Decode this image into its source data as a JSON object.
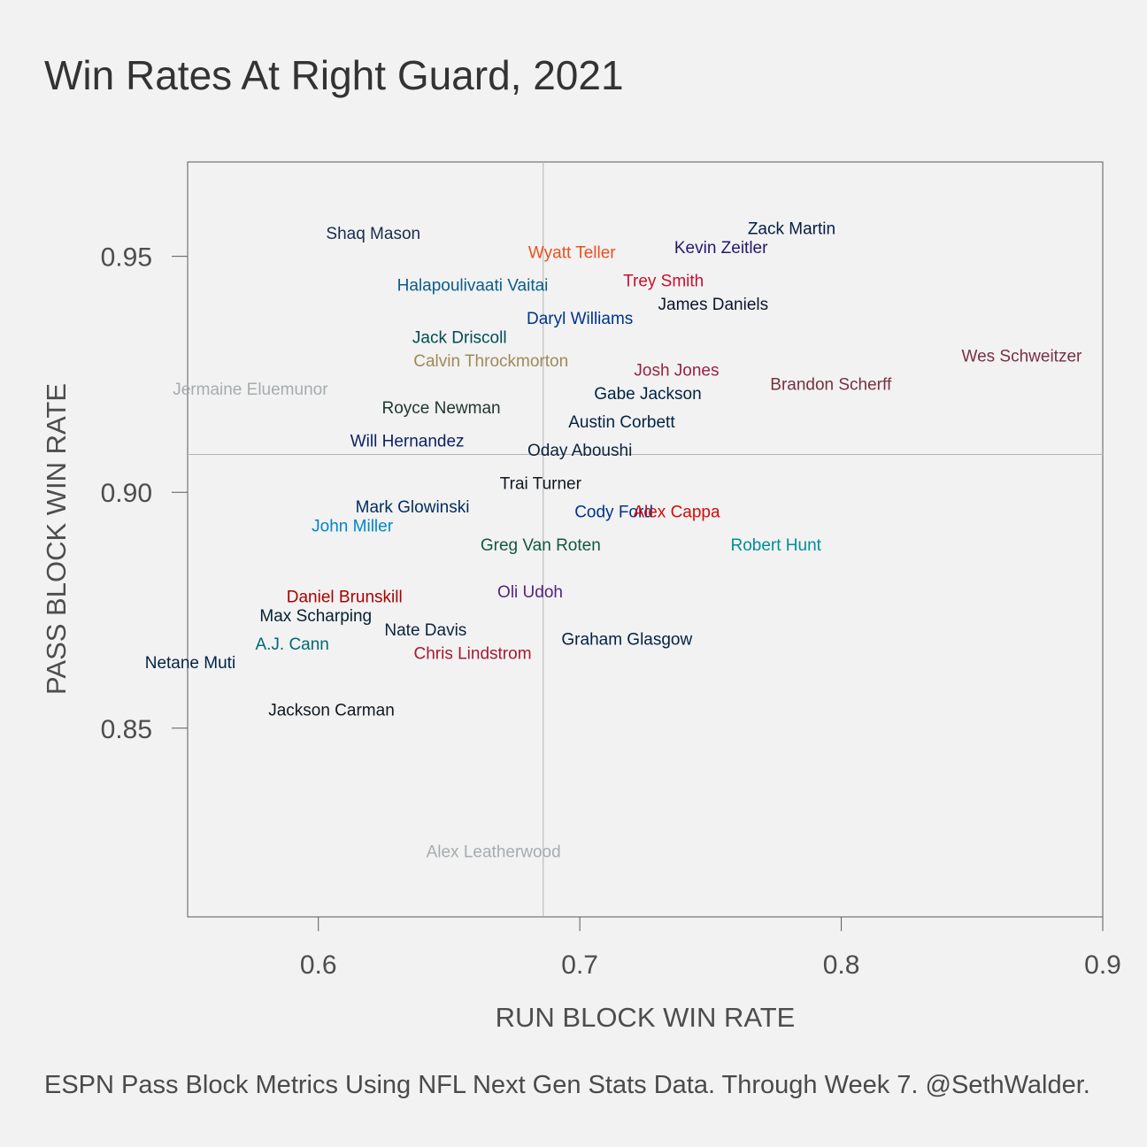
{
  "chart_data": {
    "type": "scatter",
    "title": "Win Rates At Right Guard, 2021",
    "xlabel": "RUN BLOCK WIN RATE",
    "ylabel": "PASS BLOCK WIN RATE",
    "xlim": [
      0.55,
      0.9
    ],
    "ylim": [
      0.81,
      0.97
    ],
    "x_ticks": [
      "0.6",
      "0.7",
      "0.8",
      "0.9"
    ],
    "y_ticks": [
      "0.85",
      "0.90",
      "0.95"
    ],
    "x_tick_values": [
      0.6,
      0.7,
      0.8,
      0.9
    ],
    "y_tick_values": [
      0.85,
      0.9,
      0.95
    ],
    "reference_lines": {
      "x": 0.686,
      "y": 0.908
    },
    "grid": false,
    "points": [
      {
        "label": "Zack Martin",
        "x": 0.781,
        "y": 0.956,
        "color": "#041e42"
      },
      {
        "label": "Shaq Mason",
        "x": 0.621,
        "y": 0.955,
        "color": "#1a2d4e"
      },
      {
        "label": "Kevin Zeitler",
        "x": 0.754,
        "y": 0.952,
        "color": "#241773"
      },
      {
        "label": "Wyatt Teller",
        "x": 0.697,
        "y": 0.951,
        "color": "#e8501e"
      },
      {
        "label": "Trey Smith",
        "x": 0.732,
        "y": 0.945,
        "color": "#c8102e"
      },
      {
        "label": "Halapoulivaati Vaitai",
        "x": 0.659,
        "y": 0.944,
        "color": "#0b5c8c"
      },
      {
        "label": "James Daniels",
        "x": 0.751,
        "y": 0.94,
        "color": "#0b162a"
      },
      {
        "label": "Daryl Williams",
        "x": 0.7,
        "y": 0.937,
        "color": "#00338d"
      },
      {
        "label": "Jack Driscoll",
        "x": 0.654,
        "y": 0.933,
        "color": "#004c54"
      },
      {
        "label": "Wes Schweitzer",
        "x": 0.869,
        "y": 0.929,
        "color": "#773141"
      },
      {
        "label": "Calvin Throckmorton",
        "x": 0.666,
        "y": 0.928,
        "color": "#9f8958"
      },
      {
        "label": "Josh Jones",
        "x": 0.737,
        "y": 0.926,
        "color": "#97233f"
      },
      {
        "label": "Brandon Scherff",
        "x": 0.796,
        "y": 0.923,
        "color": "#773141"
      },
      {
        "label": "Jermaine Eluemunor",
        "x": 0.574,
        "y": 0.922,
        "color": "#a5acaf"
      },
      {
        "label": "Gabe Jackson",
        "x": 0.726,
        "y": 0.921,
        "color": "#002244"
      },
      {
        "label": "Royce Newman",
        "x": 0.647,
        "y": 0.918,
        "color": "#203731"
      },
      {
        "label": "Austin Corbett",
        "x": 0.716,
        "y": 0.915,
        "color": "#002244"
      },
      {
        "label": "Will Hernandez",
        "x": 0.634,
        "y": 0.911,
        "color": "#0b2265"
      },
      {
        "label": "Oday Aboushi",
        "x": 0.7,
        "y": 0.909,
        "color": "#0c2340"
      },
      {
        "label": "Trai Turner",
        "x": 0.685,
        "y": 0.902,
        "color": "#101820"
      },
      {
        "label": "Mark Glowinski",
        "x": 0.636,
        "y": 0.897,
        "color": "#002c5f"
      },
      {
        "label": "Cody Ford",
        "x": 0.713,
        "y": 0.896,
        "color": "#00338d"
      },
      {
        "label": "Alex Cappa",
        "x": 0.737,
        "y": 0.896,
        "color": "#d50a0a"
      },
      {
        "label": "John Miller",
        "x": 0.613,
        "y": 0.893,
        "color": "#0085ca"
      },
      {
        "label": "Greg Van Roten",
        "x": 0.685,
        "y": 0.889,
        "color": "#125740"
      },
      {
        "label": "Robert Hunt",
        "x": 0.775,
        "y": 0.889,
        "color": "#008e97"
      },
      {
        "label": "Oli Udoh",
        "x": 0.681,
        "y": 0.879,
        "color": "#4f2683"
      },
      {
        "label": "Daniel Brunskill",
        "x": 0.61,
        "y": 0.878,
        "color": "#aa0000"
      },
      {
        "label": "Max Scharping",
        "x": 0.599,
        "y": 0.874,
        "color": "#03202f"
      },
      {
        "label": "Nate Davis",
        "x": 0.641,
        "y": 0.871,
        "color": "#0c2340"
      },
      {
        "label": "Graham Glasgow",
        "x": 0.718,
        "y": 0.869,
        "color": "#002244"
      },
      {
        "label": "A.J. Cann",
        "x": 0.59,
        "y": 0.868,
        "color": "#006778"
      },
      {
        "label": "Chris Lindstrom",
        "x": 0.659,
        "y": 0.866,
        "color": "#a71930"
      },
      {
        "label": "Netane Muti",
        "x": 0.551,
        "y": 0.864,
        "color": "#002244"
      },
      {
        "label": "Jackson Carman",
        "x": 0.605,
        "y": 0.854,
        "color": "#101820"
      },
      {
        "label": "Alex Leatherwood",
        "x": 0.667,
        "y": 0.824,
        "color": "#a5acaf"
      }
    ]
  },
  "caption": "ESPN Pass Block Metrics Using NFL Next Gen Stats Data. Through Week 7. @SethWalder."
}
